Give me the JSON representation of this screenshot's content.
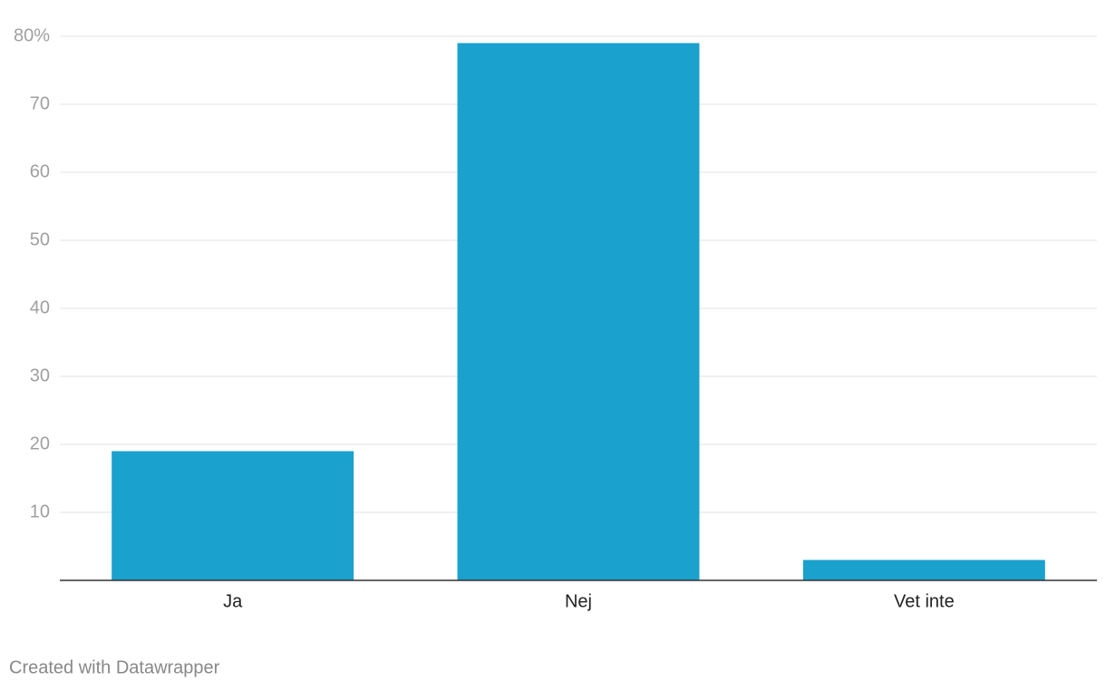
{
  "chart_data": {
    "type": "bar",
    "categories": [
      "Ja",
      "Nej",
      "Vet inte"
    ],
    "values": [
      19,
      79,
      3
    ],
    "color": "#1ba1cd",
    "ylim": [
      0,
      80
    ],
    "yticks": [
      10,
      20,
      30,
      40,
      50,
      60,
      70,
      {
        "value": 80,
        "label": "80%"
      }
    ],
    "grid": true,
    "credit": "Created with Datawrapper"
  }
}
